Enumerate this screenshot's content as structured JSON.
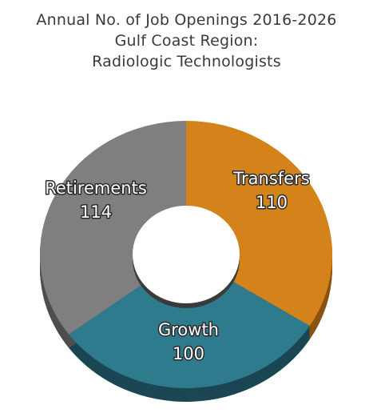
{
  "title_lines": [
    "Annual No. of Job Openings 2016-2026",
    "Gulf Coast Region:",
    "Radiologic Technologists"
  ],
  "chart_data": {
    "type": "pie",
    "variant": "donut-3d",
    "categories": [
      "Transfers",
      "Growth",
      "Retirements"
    ],
    "values": [
      110,
      100,
      114
    ],
    "colors": [
      "#d4831a",
      "#2e7b8e",
      "#7f7f7f"
    ],
    "side_colors": [
      "#8a530f",
      "#1a4753",
      "#4e4e4e"
    ],
    "data_labels": [
      {
        "name": "Transfers",
        "value": "110"
      },
      {
        "name": "Growth",
        "value": "100"
      },
      {
        "name": "Retirements",
        "value": "114"
      }
    ],
    "legend": "none"
  }
}
